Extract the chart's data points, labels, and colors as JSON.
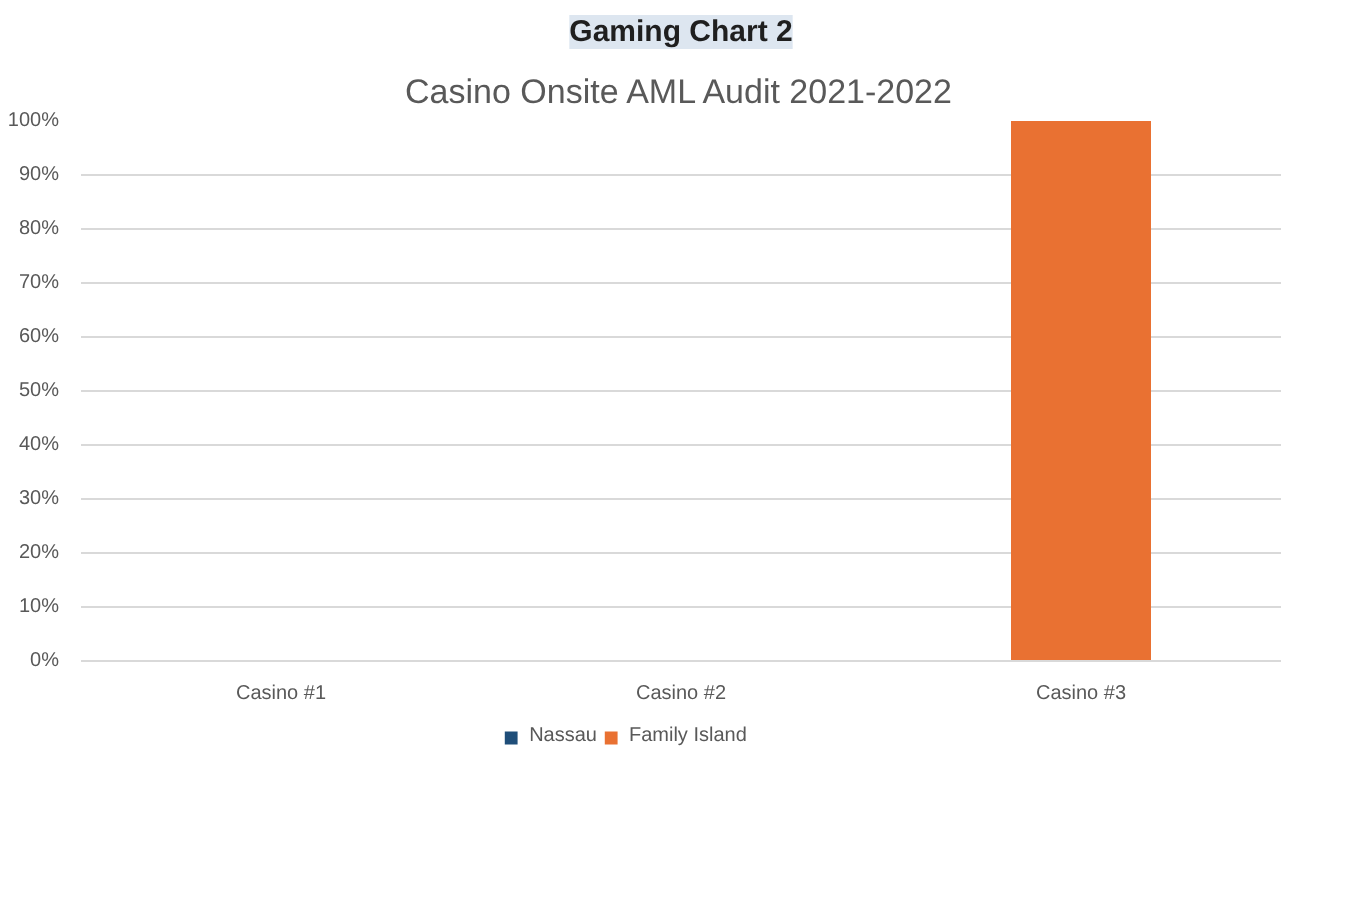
{
  "chart_data": {
    "type": "bar",
    "title": "Gaming Chart 2",
    "subtitle": "Casino Onsite AML Audit 2021-2022",
    "categories": [
      "Casino #1",
      "Casino #2",
      "Casino #3"
    ],
    "series": [
      {
        "name": "Nassau",
        "color": "#1f4e79",
        "values": [
          0,
          0,
          0
        ]
      },
      {
        "name": "Family Island",
        "color": "#e97132",
        "values": [
          0,
          0,
          100
        ]
      }
    ],
    "stacked": true,
    "ylim": [
      0,
      100
    ],
    "yticks": [
      {
        "value": 0,
        "label": "0%"
      },
      {
        "value": 10,
        "label": "10%"
      },
      {
        "value": 20,
        "label": "20%"
      },
      {
        "value": 30,
        "label": "30%"
      },
      {
        "value": 40,
        "label": "40%"
      },
      {
        "value": 50,
        "label": "50%"
      },
      {
        "value": 60,
        "label": "60%"
      },
      {
        "value": 70,
        "label": "70%"
      },
      {
        "value": 80,
        "label": "80%"
      },
      {
        "value": 90,
        "label": "90%"
      },
      {
        "value": 100,
        "label": "100%"
      }
    ],
    "grid": "y",
    "legend": "bottom"
  }
}
